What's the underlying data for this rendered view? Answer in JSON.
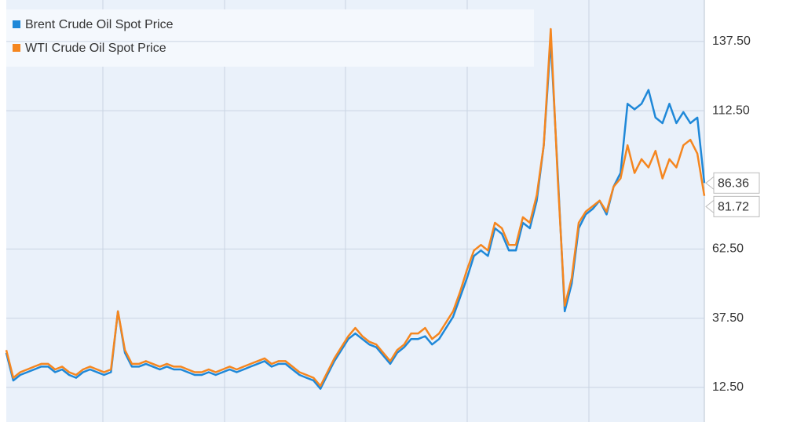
{
  "chart_data": {
    "type": "line",
    "series": [
      {
        "name": "Brent Crude Oil Spot Price",
        "color": "#1f88d8",
        "values": [
          25,
          15,
          17,
          18,
          19,
          20,
          20,
          18,
          19,
          17,
          16,
          18,
          19,
          18,
          17,
          18,
          40,
          25,
          20,
          20,
          21,
          20,
          19,
          20,
          19,
          19,
          18,
          17,
          17,
          18,
          17,
          18,
          19,
          18,
          19,
          20,
          21,
          22,
          20,
          21,
          21,
          19,
          17,
          16,
          15,
          12,
          17,
          22,
          26,
          30,
          32,
          30,
          28,
          27,
          24,
          21,
          25,
          27,
          30,
          30,
          31,
          28,
          30,
          34,
          38,
          45,
          52,
          60,
          62,
          60,
          70,
          68,
          62,
          62,
          72,
          70,
          80,
          100,
          138,
          90,
          40,
          50,
          70,
          75,
          77,
          80,
          75,
          85,
          90,
          115,
          113,
          115,
          120,
          110,
          108,
          115,
          108,
          112,
          108,
          110,
          86.36
        ]
      },
      {
        "name": "WTI Crude Oil Spot Price",
        "color": "#f5861f",
        "values": [
          26,
          16,
          18,
          19,
          20,
          21,
          21,
          19,
          20,
          18,
          17,
          19,
          20,
          19,
          18,
          19,
          40,
          26,
          21,
          21,
          22,
          21,
          20,
          21,
          20,
          20,
          19,
          18,
          18,
          19,
          18,
          19,
          20,
          19,
          20,
          21,
          22,
          23,
          21,
          22,
          22,
          20,
          18,
          17,
          16,
          13,
          18,
          23,
          27,
          31,
          34,
          31,
          29,
          28,
          25,
          22,
          26,
          28,
          32,
          32,
          34,
          30,
          32,
          36,
          40,
          47,
          55,
          62,
          64,
          62,
          72,
          70,
          64,
          64,
          74,
          72,
          82,
          100,
          142,
          88,
          42,
          52,
          72,
          76,
          78,
          80,
          76,
          85,
          88,
          100,
          90,
          95,
          92,
          98,
          88,
          95,
          92,
          100,
          102,
          97,
          81.72
        ]
      }
    ],
    "ylim": [
      0,
      152.5
    ],
    "yticks": [
      {
        "value": 12.5,
        "label": "12.50"
      },
      {
        "value": 37.5,
        "label": "37.50"
      },
      {
        "value": 62.5,
        "label": "62.50"
      },
      {
        "value": 112.5,
        "label": "112.50"
      },
      {
        "value": 137.5,
        "label": "137.50"
      }
    ],
    "grid": true
  }
}
